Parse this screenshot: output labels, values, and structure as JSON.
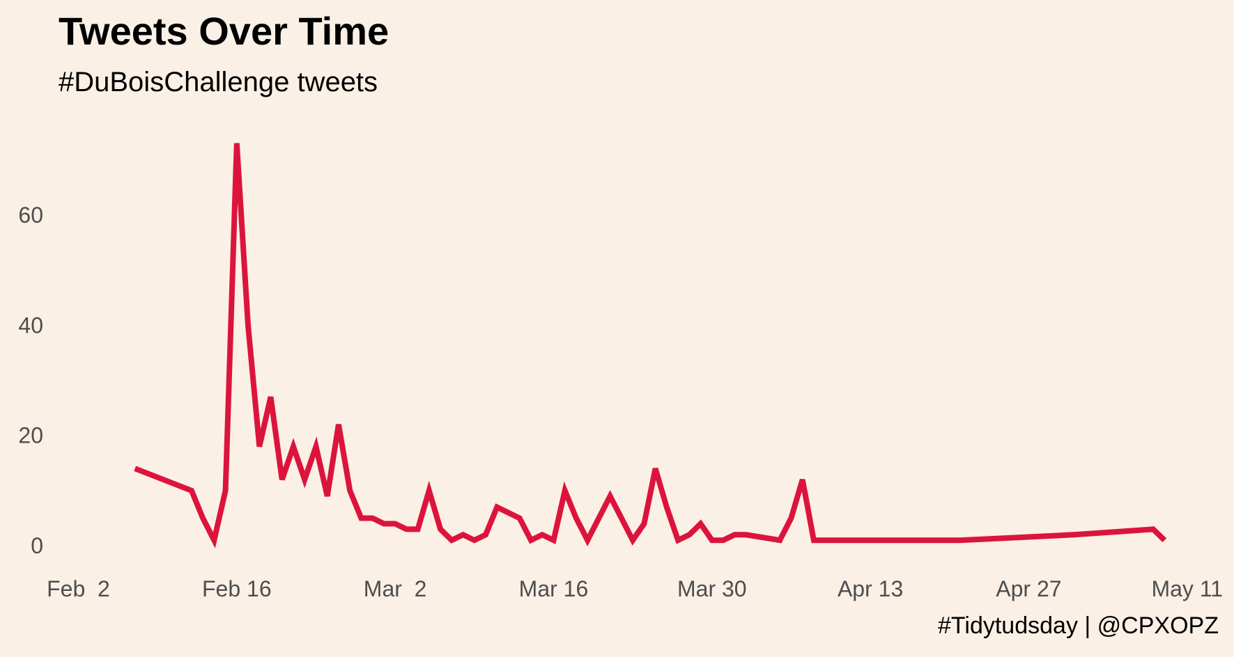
{
  "title": "Tweets Over Time",
  "subtitle": "#DuBoisChallenge tweets",
  "caption": "#Tidytudsday | @CPXOPZ",
  "chart_data": {
    "type": "line",
    "title": "Tweets Over Time",
    "subtitle": "#DuBoisChallenge tweets",
    "xlabel": "",
    "ylabel": "",
    "line_color": "#DC143C",
    "background": "#FAF0E6",
    "grid": false,
    "legend": "none",
    "xlim": [
      "2021-01-31",
      "2021-05-12"
    ],
    "ylim": [
      -2,
      75
    ],
    "x_ticks": [
      {
        "date": "2021-02-02",
        "label": "Feb  2"
      },
      {
        "date": "2021-02-16",
        "label": "Feb 16"
      },
      {
        "date": "2021-03-02",
        "label": "Mar  2"
      },
      {
        "date": "2021-03-16",
        "label": "Mar 16"
      },
      {
        "date": "2021-03-30",
        "label": "Mar 30"
      },
      {
        "date": "2021-04-13",
        "label": "Apr 13"
      },
      {
        "date": "2021-04-27",
        "label": "Apr 27"
      },
      {
        "date": "2021-05-11",
        "label": "May 11"
      }
    ],
    "y_ticks": [
      0,
      20,
      40,
      60
    ],
    "series": [
      {
        "x": [
          "2021-02-07",
          "2021-02-12",
          "2021-02-13",
          "2021-02-14",
          "2021-02-15",
          "2021-02-16",
          "2021-02-17",
          "2021-02-18",
          "2021-02-19",
          "2021-02-20",
          "2021-02-21",
          "2021-02-22",
          "2021-02-23",
          "2021-02-24",
          "2021-02-25",
          "2021-02-26",
          "2021-02-27",
          "2021-02-28",
          "2021-03-01",
          "2021-03-02",
          "2021-03-03",
          "2021-03-04",
          "2021-03-05",
          "2021-03-06",
          "2021-03-07",
          "2021-03-08",
          "2021-03-09",
          "2021-03-10",
          "2021-03-11",
          "2021-03-12",
          "2021-03-13",
          "2021-03-14",
          "2021-03-15",
          "2021-03-16",
          "2021-03-17",
          "2021-03-18",
          "2021-03-19",
          "2021-03-20",
          "2021-03-21",
          "2021-03-22",
          "2021-03-23",
          "2021-03-24",
          "2021-03-25",
          "2021-03-26",
          "2021-03-27",
          "2021-03-28",
          "2021-03-29",
          "2021-03-30",
          "2021-03-31",
          "2021-04-01",
          "2021-04-02",
          "2021-04-05",
          "2021-04-06",
          "2021-04-07",
          "2021-04-08",
          "2021-04-21",
          "2021-05-01",
          "2021-05-08",
          "2021-05-09"
        ],
        "y": [
          14,
          10,
          5,
          1,
          10,
          73,
          40,
          18,
          27,
          12,
          18,
          12,
          18,
          9,
          22,
          10,
          5,
          5,
          4,
          4,
          3,
          3,
          10,
          3,
          1,
          2,
          1,
          2,
          7,
          6,
          5,
          1,
          2,
          1,
          10,
          5,
          1,
          5,
          9,
          5,
          1,
          4,
          14,
          7,
          1,
          2,
          4,
          1,
          1,
          2,
          2,
          1,
          5,
          12,
          1,
          1,
          2,
          3,
          1
        ]
      }
    ]
  }
}
